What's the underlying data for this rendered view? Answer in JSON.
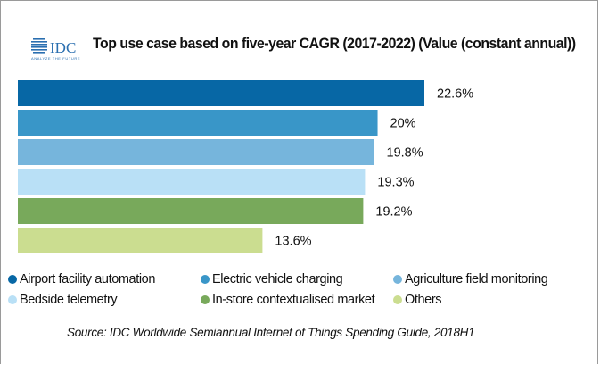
{
  "logo": {
    "text": "IDC",
    "tagline": "ANALYZE THE FUTURE"
  },
  "chart_data": {
    "type": "bar",
    "orientation": "horizontal",
    "title": "Top use case based on five-year CAGR (2017-2022) (Value (constant annual))",
    "categories": [
      "Airport facility automation",
      "Electric vehicle charging",
      "Agriculture field monitoring",
      "Bedside telemetry",
      "In-store contextualised market",
      "Others"
    ],
    "values": [
      22.6,
      20,
      19.8,
      19.3,
      19.2,
      13.6
    ],
    "labels": [
      "22.6%",
      "20%",
      "19.8%",
      "19.3%",
      "19.2%",
      "13.6%"
    ],
    "colors": [
      "#0767a5",
      "#3996c8",
      "#76b5dc",
      "#b9e0f6",
      "#78a95b",
      "#cbdd90"
    ],
    "xlim": [
      0,
      22.6
    ],
    "grid": false,
    "legend_position": "bottom",
    "source": "Source: IDC Worldwide Semiannual Internet of Things Spending Guide, 2018H1"
  }
}
